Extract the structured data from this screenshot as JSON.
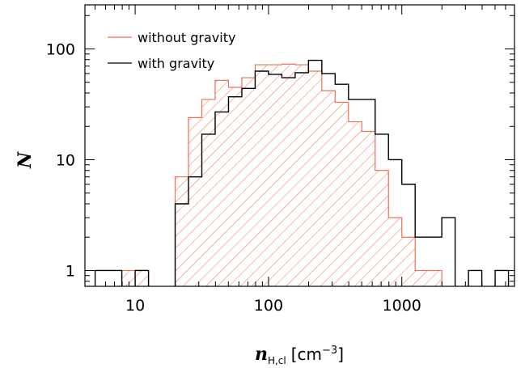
{
  "chart_data": {
    "type": "histogram",
    "x_scale": "log",
    "y_scale": "log",
    "xlim": [
      4.2,
      7000
    ],
    "ylim": [
      0.72,
      250
    ],
    "xlabel": {
      "symbol": "n",
      "subscript": "H,cl",
      "unit": "[cm",
      "unit_exp": "−3",
      "unit_close": "]"
    },
    "ylabel": "N",
    "xticks": [
      {
        "value": 10,
        "label": "10"
      },
      {
        "value": 100,
        "label": "100"
      },
      {
        "value": 1000,
        "label": "1000"
      }
    ],
    "yticks": [
      {
        "value": 1,
        "label": "1"
      },
      {
        "value": 10,
        "label": "10"
      },
      {
        "value": 100,
        "label": "100"
      }
    ],
    "bin_edges": [
      5.01,
      6.31,
      7.94,
      10.0,
      12.59,
      15.85,
      19.95,
      25.12,
      31.62,
      39.81,
      50.12,
      63.1,
      79.43,
      100.0,
      125.89,
      158.49,
      199.53,
      251.19,
      316.23,
      398.11,
      501.19,
      630.96,
      794.33,
      1000.0,
      1258.93,
      1584.89,
      1995.26,
      2511.89,
      3162.28,
      3981.07,
      5011.87,
      6309.57
    ],
    "series": [
      {
        "name": "without gravity",
        "style": "hatched",
        "color": "#f07050",
        "counts": [
          0,
          0,
          1,
          1,
          0,
          0,
          7,
          24,
          35,
          52,
          45,
          55,
          72,
          72,
          73,
          72,
          63,
          42,
          33,
          22,
          18,
          8,
          3,
          2,
          1,
          1,
          0,
          0,
          0,
          0,
          0
        ]
      },
      {
        "name": "with gravity",
        "style": "step",
        "color": "#000000",
        "counts": [
          1,
          1,
          0,
          1,
          0,
          0,
          4,
          7,
          17,
          27,
          37,
          44,
          63,
          59,
          55,
          61,
          79,
          60,
          48,
          35,
          35,
          17,
          10,
          6,
          2,
          2,
          3,
          0,
          1,
          0,
          1
        ]
      }
    ],
    "legend": {
      "position": "top-left"
    },
    "grid": false
  }
}
